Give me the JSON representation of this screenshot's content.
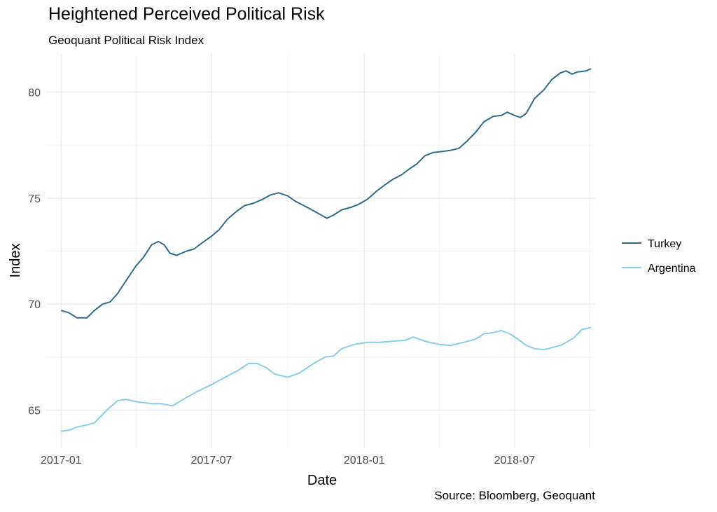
{
  "chart_data": {
    "type": "line",
    "title": "Heightened Perceived Political Risk",
    "subtitle": "Geoquant Political Risk Index",
    "xlabel": "Date",
    "ylabel": "Index",
    "caption": "Source: Bloomberg, Geoquant",
    "x_ticks": [
      "2017-01",
      "2017-07",
      "2018-01",
      "2018-07"
    ],
    "y_ticks": [
      65,
      70,
      75,
      80
    ],
    "ylim": [
      63.2,
      81.8
    ],
    "xlim": [
      "2016-12-14",
      "2018-10-06"
    ],
    "grid": true,
    "legend_position": "right",
    "series": [
      {
        "name": "Turkey",
        "color": "#2f6b8e",
        "points": [
          [
            "2017-01-01",
            69.7
          ],
          [
            "2017-01-10",
            69.6
          ],
          [
            "2017-01-20",
            69.35
          ],
          [
            "2017-02-01",
            69.35
          ],
          [
            "2017-02-10",
            69.7
          ],
          [
            "2017-02-20",
            70.0
          ],
          [
            "2017-03-01",
            70.1
          ],
          [
            "2017-03-10",
            70.5
          ],
          [
            "2017-03-20",
            71.1
          ],
          [
            "2017-04-01",
            71.8
          ],
          [
            "2017-04-10",
            72.2
          ],
          [
            "2017-04-20",
            72.8
          ],
          [
            "2017-04-28",
            72.95
          ],
          [
            "2017-05-05",
            72.8
          ],
          [
            "2017-05-12",
            72.4
          ],
          [
            "2017-05-20",
            72.3
          ],
          [
            "2017-06-01",
            72.5
          ],
          [
            "2017-06-10",
            72.6
          ],
          [
            "2017-06-20",
            72.9
          ],
          [
            "2017-07-01",
            73.2
          ],
          [
            "2017-07-10",
            73.5
          ],
          [
            "2017-07-20",
            74.0
          ],
          [
            "2017-08-01",
            74.4
          ],
          [
            "2017-08-10",
            74.65
          ],
          [
            "2017-08-20",
            74.75
          ],
          [
            "2017-09-01",
            74.95
          ],
          [
            "2017-09-10",
            75.15
          ],
          [
            "2017-09-20",
            75.25
          ],
          [
            "2017-10-01",
            75.1
          ],
          [
            "2017-10-10",
            74.85
          ],
          [
            "2017-10-20",
            74.65
          ],
          [
            "2017-11-01",
            74.4
          ],
          [
            "2017-11-10",
            74.2
          ],
          [
            "2017-11-17",
            74.05
          ],
          [
            "2017-11-25",
            74.2
          ],
          [
            "2017-12-05",
            74.45
          ],
          [
            "2017-12-15",
            74.55
          ],
          [
            "2017-12-25",
            74.7
          ],
          [
            "2018-01-05",
            74.95
          ],
          [
            "2018-01-15",
            75.3
          ],
          [
            "2018-01-25",
            75.6
          ],
          [
            "2018-02-05",
            75.9
          ],
          [
            "2018-02-15",
            76.1
          ],
          [
            "2018-02-25",
            76.4
          ],
          [
            "2018-03-05",
            76.6
          ],
          [
            "2018-03-15",
            77.0
          ],
          [
            "2018-03-25",
            77.15
          ],
          [
            "2018-04-05",
            77.2
          ],
          [
            "2018-04-15",
            77.25
          ],
          [
            "2018-04-25",
            77.35
          ],
          [
            "2018-05-05",
            77.7
          ],
          [
            "2018-05-15",
            78.1
          ],
          [
            "2018-05-25",
            78.6
          ],
          [
            "2018-06-05",
            78.85
          ],
          [
            "2018-06-15",
            78.9
          ],
          [
            "2018-06-22",
            79.05
          ],
          [
            "2018-07-01",
            78.9
          ],
          [
            "2018-07-08",
            78.8
          ],
          [
            "2018-07-15",
            79.0
          ],
          [
            "2018-07-25",
            79.7
          ],
          [
            "2018-08-05",
            80.1
          ],
          [
            "2018-08-15",
            80.6
          ],
          [
            "2018-08-25",
            80.9
          ],
          [
            "2018-09-01",
            81.0
          ],
          [
            "2018-09-08",
            80.85
          ],
          [
            "2018-09-15",
            80.95
          ],
          [
            "2018-09-25",
            81.0
          ],
          [
            "2018-10-01",
            81.1
          ]
        ]
      },
      {
        "name": "Argentina",
        "color": "#87ceeb",
        "points": [
          [
            "2017-01-01",
            64.0
          ],
          [
            "2017-01-10",
            64.05
          ],
          [
            "2017-01-20",
            64.2
          ],
          [
            "2017-02-01",
            64.3
          ],
          [
            "2017-02-10",
            64.4
          ],
          [
            "2017-02-15",
            64.6
          ],
          [
            "2017-02-25",
            65.0
          ],
          [
            "2017-03-10",
            65.45
          ],
          [
            "2017-03-20",
            65.5
          ],
          [
            "2017-04-01",
            65.4
          ],
          [
            "2017-04-10",
            65.35
          ],
          [
            "2017-04-20",
            65.3
          ],
          [
            "2017-05-01",
            65.3
          ],
          [
            "2017-05-15",
            65.2
          ],
          [
            "2017-06-01",
            65.6
          ],
          [
            "2017-06-15",
            65.9
          ],
          [
            "2017-07-01",
            66.2
          ],
          [
            "2017-07-15",
            66.5
          ],
          [
            "2017-08-01",
            66.85
          ],
          [
            "2017-08-15",
            67.2
          ],
          [
            "2017-08-25",
            67.2
          ],
          [
            "2017-09-05",
            67.0
          ],
          [
            "2017-09-15",
            66.7
          ],
          [
            "2017-10-01",
            66.55
          ],
          [
            "2017-10-15",
            66.75
          ],
          [
            "2017-11-01",
            67.2
          ],
          [
            "2017-11-15",
            67.5
          ],
          [
            "2017-11-25",
            67.55
          ],
          [
            "2017-12-05",
            67.9
          ],
          [
            "2017-12-20",
            68.1
          ],
          [
            "2018-01-05",
            68.2
          ],
          [
            "2018-01-20",
            68.2
          ],
          [
            "2018-02-05",
            68.25
          ],
          [
            "2018-02-20",
            68.3
          ],
          [
            "2018-03-01",
            68.45
          ],
          [
            "2018-03-15",
            68.25
          ],
          [
            "2018-04-01",
            68.1
          ],
          [
            "2018-04-15",
            68.05
          ],
          [
            "2018-05-01",
            68.2
          ],
          [
            "2018-05-15",
            68.35
          ],
          [
            "2018-05-25",
            68.6
          ],
          [
            "2018-06-05",
            68.65
          ],
          [
            "2018-06-15",
            68.75
          ],
          [
            "2018-06-25",
            68.6
          ],
          [
            "2018-07-05",
            68.35
          ],
          [
            "2018-07-15",
            68.05
          ],
          [
            "2018-07-25",
            67.9
          ],
          [
            "2018-08-05",
            67.85
          ],
          [
            "2018-08-15",
            67.95
          ],
          [
            "2018-08-25",
            68.05
          ],
          [
            "2018-09-01",
            68.2
          ],
          [
            "2018-09-10",
            68.4
          ],
          [
            "2018-09-20",
            68.8
          ],
          [
            "2018-10-01",
            68.9
          ]
        ]
      }
    ]
  }
}
